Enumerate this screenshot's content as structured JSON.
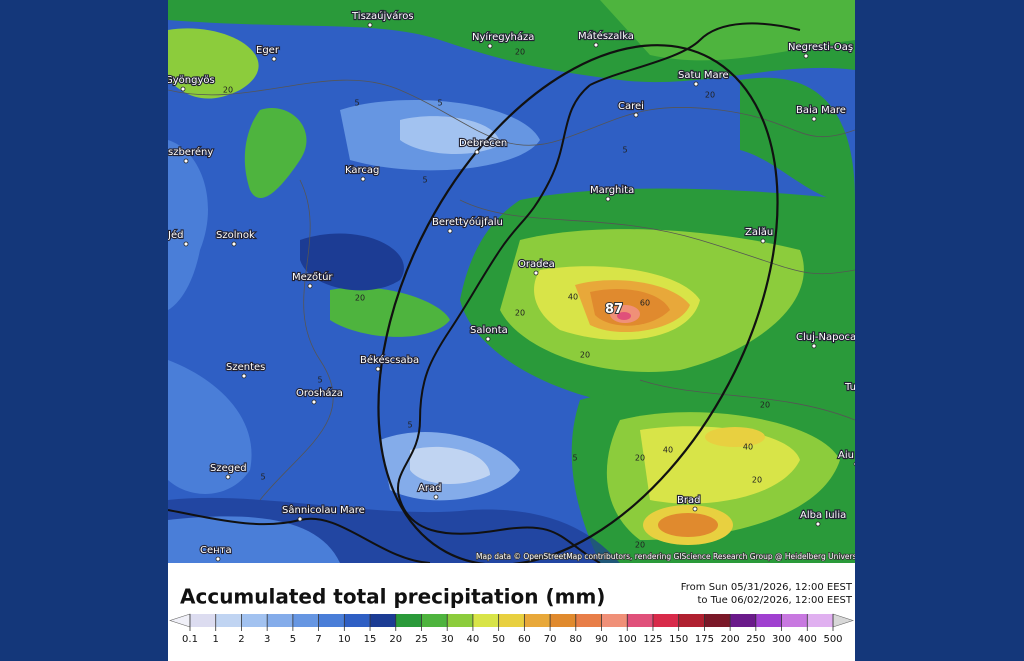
{
  "title": "Accumulated total precipitation (mm)",
  "period": [
    "From Sun 05/31/2026, 12:00 EEST",
    "to Tue 06/02/2026, 12:00 EEST"
  ],
  "attribution": "Map data © OpenStreetMap contributors, rendering GIScience Research Group @ Heidelberg University",
  "cities": [
    "Gyöngyös",
    "Eger",
    "Tiszaújváros",
    "Nyíregyháza",
    "Mátészalka",
    "Negresti-Oaş",
    "Satu Mare",
    "Baia Mare",
    "Carei",
    "Debrecen",
    "szberény",
    "Karcag",
    "Marghita",
    "Jéd",
    "Szolnok",
    "Berettyóújfalu",
    "Zalău",
    "Oradea",
    "Mezőtúr",
    "Salonta",
    "Cluj-Napoca",
    "Békéscsaba",
    "Szentes",
    "Orosháza",
    "Tu",
    "Szeged",
    "Aiu",
    "Arad",
    "Brad",
    "Sânnicolau Mare",
    "Alba Iulia",
    "Сента"
  ],
  "contours": [
    20,
    5,
    5,
    20,
    20,
    5,
    5,
    20,
    40,
    60,
    87,
    20,
    20,
    5,
    20,
    40,
    40,
    20,
    5,
    5,
    20,
    20,
    5
  ],
  "legend": {
    "ticks": [
      0.1,
      1,
      2,
      3,
      5,
      7,
      10,
      15,
      20,
      25,
      30,
      40,
      50,
      60,
      70,
      80,
      90,
      100,
      125,
      150,
      175,
      200,
      250,
      300,
      400,
      500
    ],
    "colors": [
      "#dcdcf0",
      "#c0d4f2",
      "#a2c2f0",
      "#84acea",
      "#6696e2",
      "#4a7ed8",
      "#2f5fc4",
      "#1c3c94",
      "#2a9a3a",
      "#4eb43e",
      "#8ccc3c",
      "#d8e448",
      "#e8d040",
      "#e8a83a",
      "#e08a2e",
      "#e87e48",
      "#f09078",
      "#e0507a",
      "#d82a4a",
      "#b02030",
      "#7a1828",
      "#6a1a8a",
      "#a040d0",
      "#c878e0",
      "#e0b0f0"
    ],
    "low_color": "#f0f0f8",
    "high_color": "#d8d8d8"
  }
}
